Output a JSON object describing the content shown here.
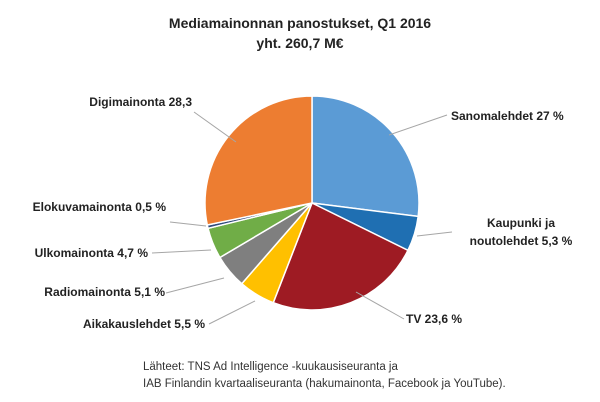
{
  "chart_data": {
    "type": "pie",
    "title": "Mediamainonnan panostukset, Q1 2016",
    "subtitle": "yht. 260,7 M€",
    "slices": [
      {
        "category": "Sanomalehdet",
        "value": 27.0,
        "label": "Sanomalehdet 27 %",
        "color": "#5B9BD5"
      },
      {
        "category": "Kaupunki ja noutolehdet",
        "value": 5.3,
        "label": "Kaupunki ja noutolehdet 5,3 %",
        "color": "#1F6FB2"
      },
      {
        "category": "TV",
        "value": 23.6,
        "label": "TV 23,6 %",
        "color": "#9E1B23"
      },
      {
        "category": "Aikakauslehdet",
        "value": 5.5,
        "label": "Aikakauslehdet  5,5 %",
        "color": "#FFC000"
      },
      {
        "category": "Radiomainonta",
        "value": 5.1,
        "label": "Radiomainonta 5,1 %",
        "color": "#7F7F7F"
      },
      {
        "category": "Ulkomainonta",
        "value": 4.7,
        "label": "Ulkomainonta 4,7 %",
        "color": "#70AD47"
      },
      {
        "category": "Elokuvamainonta",
        "value": 0.5,
        "label": "Elokuvamainonta 0,5 %",
        "color": "#2E4A7D"
      },
      {
        "category": "Digimainonta",
        "value": 28.3,
        "label": "Digimainonta 28,3",
        "color": "#ED7D31"
      }
    ]
  },
  "labels": {
    "sanomalehdet": "Sanomalehdet 27 %",
    "kaupunki_line1": "Kaupunki ja",
    "kaupunki_line2": "noutolehdet 5,3 %",
    "tv": "TV 23,6 %",
    "aikakauslehdet": "Aikakauslehdet  5,5 %",
    "radio": "Radiomainonta 5,1 %",
    "ulko": "Ulkomainonta 4,7 %",
    "elokuva": "Elokuvamainonta 0,5 %",
    "digi": "Digimainonta 28,3"
  },
  "source": {
    "line1": "Lähteet: TNS Ad Intelligence -kuukausiseuranta ja",
    "line2": "IAB Finlandin kvartaaliseuranta (hakumainonta, Facebook ja YouTube)."
  }
}
